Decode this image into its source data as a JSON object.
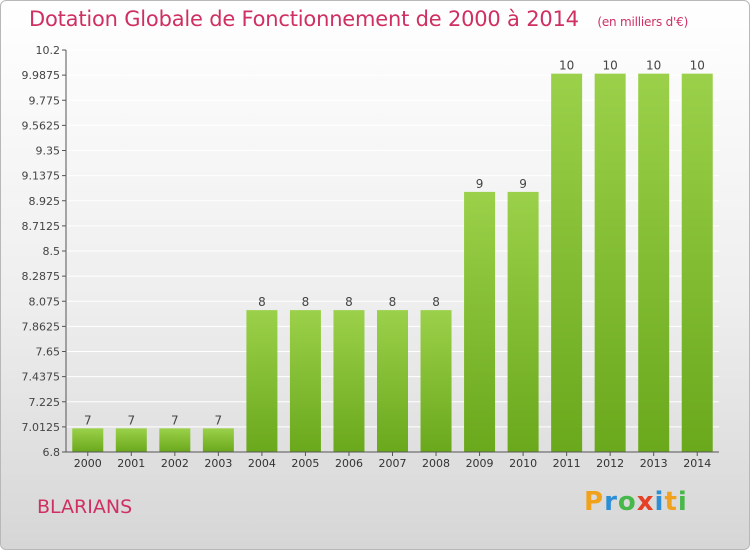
{
  "header": {
    "title": "Dotation Globale de Fonctionnement de 2000 à 2014",
    "subtitle": "(en milliers d'€)"
  },
  "footer": {
    "commune": "BLARIANS",
    "logo_text": "Proxiti"
  },
  "colors": {
    "title": "#cf3061",
    "bar_light": "#9bd14a",
    "bar_dark": "#6aa81c",
    "axis": "#555555"
  },
  "chart_data": {
    "type": "bar",
    "title": "Dotation Globale de Fonctionnement de 2000 à 2014",
    "subtitle": "(en milliers d'€)",
    "categories": [
      "2000",
      "2001",
      "2002",
      "2003",
      "2004",
      "2005",
      "2006",
      "2007",
      "2008",
      "2009",
      "2010",
      "2011",
      "2012",
      "2013",
      "2014"
    ],
    "values": [
      7,
      7,
      7,
      7,
      8,
      8,
      8,
      8,
      8,
      9,
      9,
      10,
      10,
      10,
      10
    ],
    "value_labels": [
      "7",
      "7",
      "7",
      "7",
      "8",
      "8",
      "8",
      "8",
      "8",
      "9",
      "9",
      "10",
      "10",
      "10",
      "10"
    ],
    "yticks": [
      "6.8",
      "7.0125",
      "7.225",
      "7.4375",
      "7.65",
      "7.8625",
      "8.075",
      "8.2875",
      "8.5",
      "8.7125",
      "8.925",
      "9.1375",
      "9.35",
      "9.5625",
      "9.775",
      "9.9875",
      "10.2"
    ],
    "ylim": [
      6.8,
      10.2
    ],
    "xlabel": "",
    "ylabel": "",
    "grid": true,
    "legend": "none"
  }
}
